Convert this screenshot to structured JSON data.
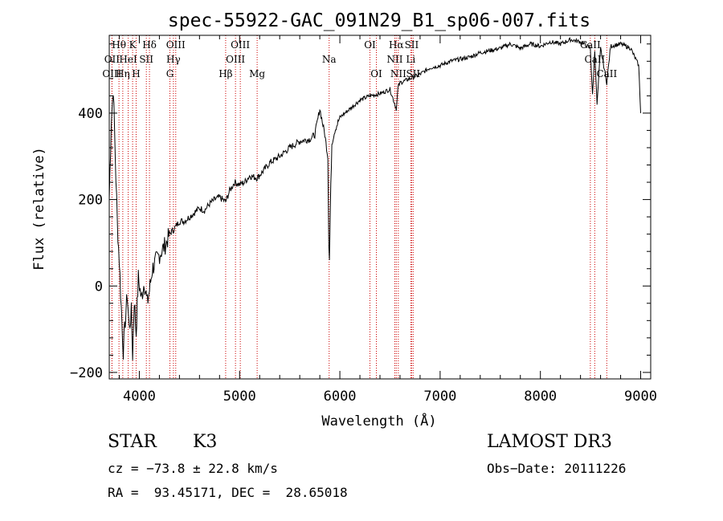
{
  "chart_data": {
    "type": "line",
    "title": "spec-55922-GAC_091N29_B1_sp06-007.fits",
    "xlabel": "Wavelength (Å)",
    "ylabel": "Flux (relative)",
    "xlim": [
      3700,
      9100
    ],
    "ylim": [
      -215,
      580
    ],
    "xticks": [
      "4000",
      "5000",
      "6000",
      "7000",
      "8000",
      "9000"
    ],
    "xtick_values": [
      4000,
      5000,
      6000,
      7000,
      8000,
      9000
    ],
    "yticks": [
      "−200",
      "0",
      "200",
      "400"
    ],
    "ytick_values": [
      -200,
      0,
      200,
      400
    ],
    "series": [
      {
        "name": "flux",
        "x": [
          3700,
          3720,
          3740,
          3760,
          3780,
          3800,
          3820,
          3840,
          3860,
          3880,
          3900,
          3920,
          3933,
          3950,
          3968,
          3990,
          4020,
          4050,
          4080,
          4101,
          4130,
          4170,
          4220,
          4270,
          4300,
          4340,
          4400,
          4450,
          4500,
          4550,
          4600,
          4650,
          4700,
          4750,
          4800,
          4861,
          4900,
          4950,
          5000,
          5050,
          5100,
          5175,
          5250,
          5300,
          5400,
          5500,
          5600,
          5700,
          5750,
          5800,
          5850,
          5880,
          5890,
          5896,
          5905,
          5920,
          5950,
          6000,
          6100,
          6200,
          6300,
          6400,
          6500,
          6563,
          6580,
          6600,
          6700,
          6800,
          6900,
          7000,
          7100,
          7200,
          7300,
          7400,
          7500,
          7600,
          7700,
          7800,
          7900,
          8000,
          8100,
          8200,
          8300,
          8400,
          8498,
          8520,
          8542,
          8565,
          8600,
          8662,
          8700,
          8800,
          8900,
          8980,
          9000
        ],
        "y": [
          200,
          380,
          460,
          300,
          150,
          60,
          -50,
          -150,
          -80,
          -20,
          -100,
          -60,
          -160,
          -30,
          -110,
          20,
          -30,
          10,
          -40,
          -10,
          40,
          60,
          80,
          100,
          120,
          130,
          150,
          150,
          160,
          170,
          180,
          175,
          190,
          200,
          205,
          195,
          220,
          240,
          235,
          240,
          255,
          250,
          270,
          285,
          300,
          320,
          335,
          340,
          350,
          410,
          350,
          300,
          100,
          60,
          180,
          330,
          360,
          390,
          410,
          430,
          440,
          445,
          455,
          410,
          460,
          470,
          480,
          490,
          505,
          510,
          520,
          525,
          530,
          540,
          545,
          550,
          560,
          550,
          560,
          555,
          565,
          560,
          570,
          565,
          550,
          440,
          545,
          420,
          550,
          470,
          555,
          560,
          550,
          510,
          400
        ]
      }
    ],
    "line_markers": [
      {
        "name": "Hθ",
        "wl": 3797,
        "row": 1
      },
      {
        "name": "OII",
        "wl": 3727,
        "row": 2
      },
      {
        "name": "OIII",
        "wl": 3727,
        "row": 3
      },
      {
        "name": "Hη",
        "wl": 3835,
        "row": 3
      },
      {
        "name": "HeI",
        "wl": 3889,
        "row": 2
      },
      {
        "name": "K",
        "wl": 3933,
        "row": 1
      },
      {
        "name": "H",
        "wl": 3968,
        "row": 3
      },
      {
        "name": "SII",
        "wl": 4070,
        "row": 2
      },
      {
        "name": "Hδ",
        "wl": 4101,
        "row": 1
      },
      {
        "name": "OIII",
        "wl": 4363,
        "row": 1
      },
      {
        "name": "Hγ",
        "wl": 4340,
        "row": 2
      },
      {
        "name": "G",
        "wl": 4305,
        "row": 3
      },
      {
        "name": "Hβ",
        "wl": 4861,
        "row": 3
      },
      {
        "name": "OIII",
        "wl": 5007,
        "row": 1
      },
      {
        "name": "OIII",
        "wl": 4959,
        "row": 2
      },
      {
        "name": "Mg",
        "wl": 5175,
        "row": 3
      },
      {
        "name": "Na",
        "wl": 5893,
        "row": 2
      },
      {
        "name": "OI",
        "wl": 6300,
        "row": 1
      },
      {
        "name": "OI",
        "wl": 6364,
        "row": 3
      },
      {
        "name": "Hα",
        "wl": 6563,
        "row": 1
      },
      {
        "name": "NII",
        "wl": 6548,
        "row": 2
      },
      {
        "name": "NII",
        "wl": 6583,
        "row": 3
      },
      {
        "name": "SII",
        "wl": 6716,
        "row": 1
      },
      {
        "name": "SII",
        "wl": 6731,
        "row": 3
      },
      {
        "name": "Li",
        "wl": 6707,
        "row": 2
      },
      {
        "name": "CaII",
        "wl": 8498,
        "row": 1
      },
      {
        "name": "CaII",
        "wl": 8542,
        "row": 2
      },
      {
        "name": "CaII",
        "wl": 8662,
        "row": 3
      }
    ],
    "line_marker_color": "#cc0000"
  },
  "info": {
    "class": "STAR",
    "subclass": "K3",
    "survey": "LAMOST DR3",
    "cz": "cz = −73.8 ± 22.8 km/s",
    "obs_date": "Obs−Date: 20111226",
    "coords": "RA =  93.45171, DEC =  28.65018"
  }
}
